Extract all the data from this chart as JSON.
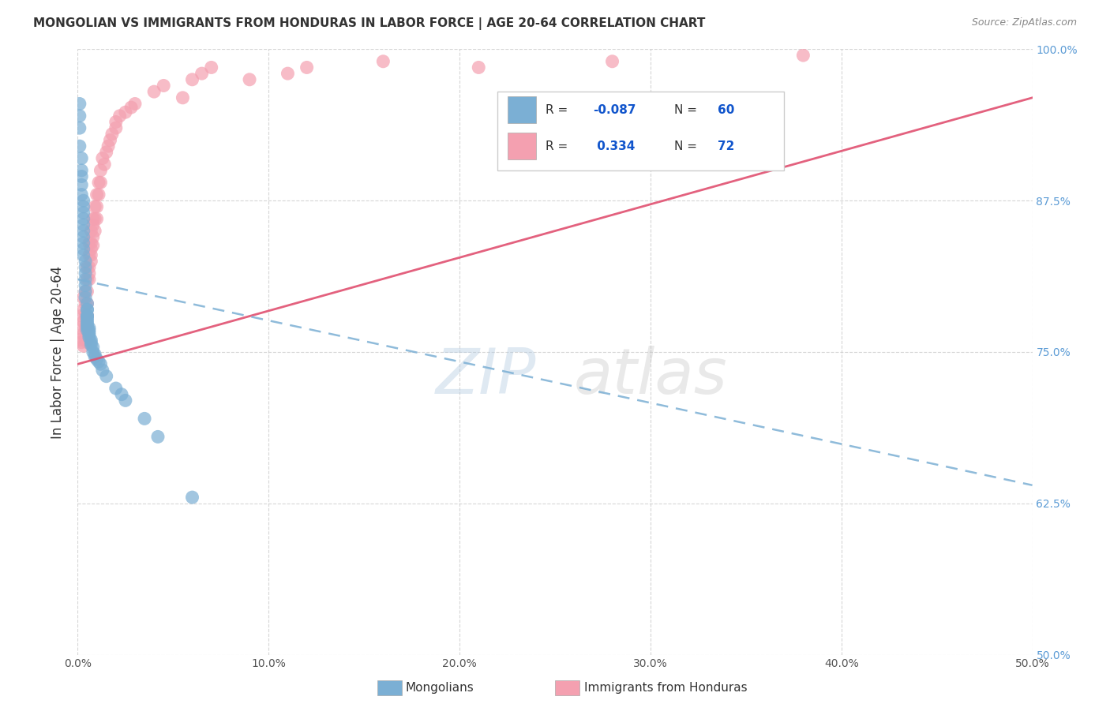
{
  "title": "MONGOLIAN VS IMMIGRANTS FROM HONDURAS IN LABOR FORCE | AGE 20-64 CORRELATION CHART",
  "source": "Source: ZipAtlas.com",
  "ylabel": "In Labor Force | Age 20-64",
  "x_min": 0.0,
  "x_max": 0.5,
  "y_min": 0.5,
  "y_max": 1.0,
  "x_ticks": [
    0.0,
    0.1,
    0.2,
    0.3,
    0.4,
    0.5
  ],
  "x_tick_labels": [
    "0.0%",
    "10.0%",
    "20.0%",
    "30.0%",
    "40.0%",
    "50.0%"
  ],
  "y_ticks": [
    0.5,
    0.625,
    0.75,
    0.875,
    1.0
  ],
  "y_tick_labels": [
    "50.0%",
    "62.5%",
    "75.0%",
    "87.5%",
    "100.0%"
  ],
  "mongolian_color": "#7BAFD4",
  "honduras_color": "#F4A0B0",
  "mongolian_R": -0.087,
  "mongolian_N": 60,
  "honduras_R": 0.334,
  "honduras_N": 72,
  "watermark_zip": "ZIP",
  "watermark_atlas": "atlas",
  "mongolian_x": [
    0.001,
    0.001,
    0.001,
    0.001,
    0.002,
    0.002,
    0.002,
    0.002,
    0.002,
    0.003,
    0.003,
    0.003,
    0.003,
    0.003,
    0.003,
    0.003,
    0.003,
    0.003,
    0.003,
    0.004,
    0.004,
    0.004,
    0.004,
    0.004,
    0.004,
    0.004,
    0.005,
    0.005,
    0.005,
    0.005,
    0.005,
    0.005,
    0.005,
    0.005,
    0.005,
    0.005,
    0.005,
    0.006,
    0.006,
    0.006,
    0.006,
    0.006,
    0.007,
    0.007,
    0.007,
    0.008,
    0.008,
    0.009,
    0.009,
    0.01,
    0.011,
    0.012,
    0.013,
    0.015,
    0.02,
    0.023,
    0.025,
    0.035,
    0.042,
    0.06
  ],
  "mongolian_y": [
    0.955,
    0.945,
    0.935,
    0.92,
    0.91,
    0.9,
    0.895,
    0.888,
    0.88,
    0.875,
    0.87,
    0.865,
    0.86,
    0.855,
    0.85,
    0.845,
    0.84,
    0.835,
    0.83,
    0.825,
    0.82,
    0.815,
    0.81,
    0.805,
    0.8,
    0.795,
    0.79,
    0.785,
    0.785,
    0.78,
    0.78,
    0.778,
    0.776,
    0.774,
    0.772,
    0.77,
    0.768,
    0.77,
    0.768,
    0.766,
    0.764,
    0.762,
    0.76,
    0.758,
    0.756,
    0.754,
    0.75,
    0.748,
    0.746,
    0.744,
    0.742,
    0.74,
    0.735,
    0.73,
    0.72,
    0.715,
    0.71,
    0.695,
    0.68,
    0.63
  ],
  "honduras_x": [
    0.001,
    0.001,
    0.002,
    0.002,
    0.003,
    0.003,
    0.003,
    0.003,
    0.003,
    0.004,
    0.004,
    0.004,
    0.004,
    0.004,
    0.005,
    0.005,
    0.005,
    0.005,
    0.005,
    0.005,
    0.005,
    0.005,
    0.005,
    0.006,
    0.006,
    0.006,
    0.006,
    0.006,
    0.007,
    0.007,
    0.007,
    0.007,
    0.007,
    0.008,
    0.008,
    0.008,
    0.008,
    0.009,
    0.009,
    0.009,
    0.01,
    0.01,
    0.01,
    0.011,
    0.011,
    0.012,
    0.012,
    0.013,
    0.014,
    0.015,
    0.016,
    0.017,
    0.018,
    0.02,
    0.02,
    0.022,
    0.025,
    0.028,
    0.03,
    0.04,
    0.045,
    0.055,
    0.06,
    0.065,
    0.07,
    0.09,
    0.11,
    0.12,
    0.16,
    0.21,
    0.28,
    0.38
  ],
  "honduras_y": [
    0.77,
    0.76,
    0.78,
    0.758,
    0.795,
    0.785,
    0.775,
    0.765,
    0.755,
    0.8,
    0.79,
    0.78,
    0.77,
    0.76,
    0.82,
    0.81,
    0.8,
    0.79,
    0.78,
    0.77,
    0.765,
    0.76,
    0.758,
    0.84,
    0.83,
    0.82,
    0.815,
    0.81,
    0.85,
    0.84,
    0.835,
    0.83,
    0.825,
    0.86,
    0.855,
    0.845,
    0.838,
    0.87,
    0.86,
    0.85,
    0.88,
    0.87,
    0.86,
    0.89,
    0.88,
    0.9,
    0.89,
    0.91,
    0.905,
    0.915,
    0.92,
    0.925,
    0.93,
    0.94,
    0.935,
    0.945,
    0.948,
    0.952,
    0.955,
    0.965,
    0.97,
    0.96,
    0.975,
    0.98,
    0.985,
    0.975,
    0.98,
    0.985,
    0.99,
    0.985,
    0.99,
    0.995
  ],
  "trend_mon_x0": 0.0,
  "trend_mon_x1": 0.5,
  "trend_mon_y0": 0.81,
  "trend_mon_y1": 0.64,
  "trend_hon_x0": 0.0,
  "trend_hon_x1": 0.5,
  "trend_hon_y0": 0.74,
  "trend_hon_y1": 0.96
}
